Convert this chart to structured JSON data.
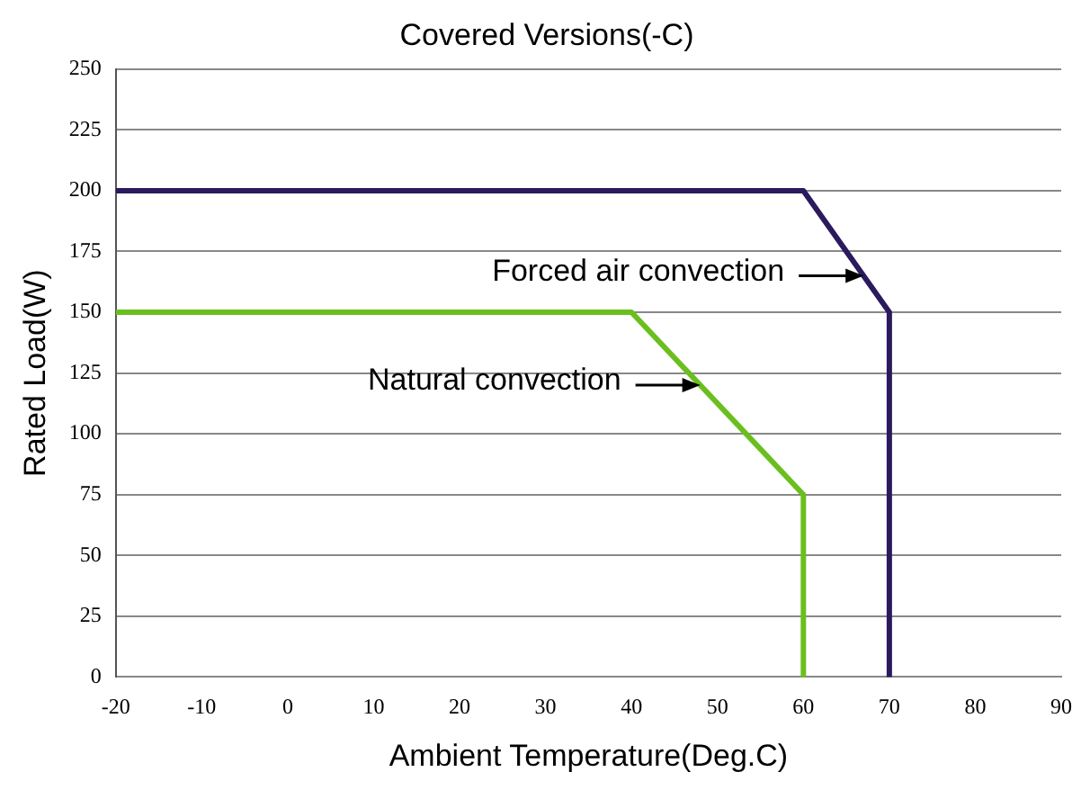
{
  "chart_data": {
    "type": "line",
    "title": "Covered Versions(-C)",
    "xlabel": "Ambient Temperature(Deg.C)",
    "ylabel": "Rated Load(W)",
    "series": [
      {
        "color": "#2b1a5e",
        "x": [
          -20,
          60,
          70,
          70
        ],
        "values": [
          200,
          200,
          150,
          0
        ]
      },
      {
        "color": "#6abf1f",
        "x": [
          -20,
          40,
          60,
          60
        ],
        "values": [
          150,
          150,
          75,
          0
        ]
      }
    ],
    "annotations": [
      {
        "text": "Forced air convection",
        "x": 67,
        "y": 165
      },
      {
        "text": "Natural convection",
        "x": 48,
        "y": 120
      }
    ],
    "xlim": [
      -20,
      90
    ],
    "xticks": [
      -20,
      -10,
      0,
      10,
      20,
      30,
      40,
      50,
      60,
      70,
      80,
      90
    ],
    "ylim": [
      0,
      250
    ],
    "yticks": [
      0,
      25,
      50,
      75,
      100,
      125,
      150,
      175,
      200,
      225,
      250
    ],
    "grid": "y",
    "marker": "none",
    "line_style": "solid",
    "legend": false
  }
}
